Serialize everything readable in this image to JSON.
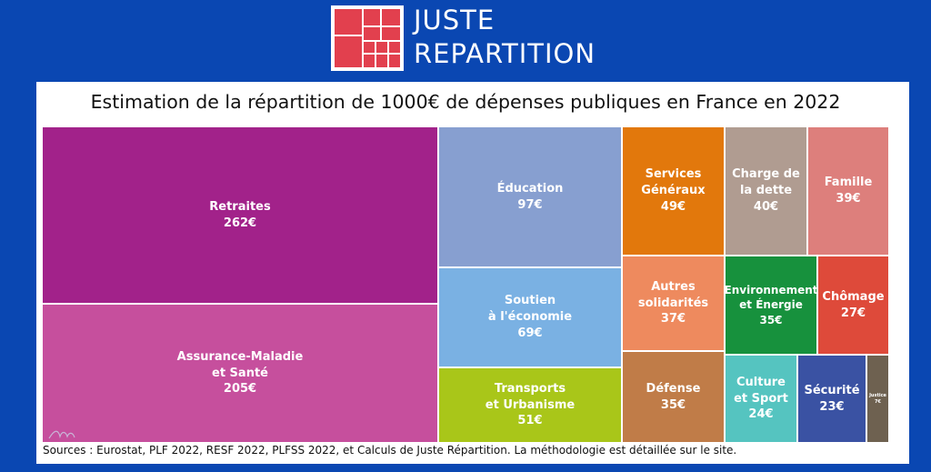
{
  "logo": {
    "line1": "JUSTE",
    "line2": "REPARTITION",
    "icon": "treemap-logo-icon"
  },
  "title": "Estimation de la répartition de 1000€ de dépenses publiques en France en 2022",
  "sources": "Sources : Eurostat, PLF 2022, RESF 2022, PLFSS 2022, et Calculs de Juste Répartition. La méthodologie est détaillée sur le site.",
  "chart_data": {
    "type": "treemap",
    "title": "Estimation de la répartition de 1000€ de dépenses publiques en France en 2022",
    "unit": "€",
    "items": [
      {
        "label": "Retraites",
        "value": 262,
        "value_label": "262€",
        "color": "#a2228a"
      },
      {
        "label": "Assurance-Maladie\net Santé",
        "value": 205,
        "value_label": "205€",
        "color": "#c64f9d"
      },
      {
        "label": "Éducation",
        "value": 97,
        "value_label": "97€",
        "color": "#879fd0"
      },
      {
        "label": "Soutien\nà l'économie",
        "value": 69,
        "value_label": "69€",
        "color": "#7ab1e3"
      },
      {
        "label": "Transports\net Urbanisme",
        "value": 51,
        "value_label": "51€",
        "color": "#a9c619"
      },
      {
        "label": "Services\nGénéraux",
        "value": 49,
        "value_label": "49€",
        "color": "#e2780c"
      },
      {
        "label": "Autres\nsolidarités",
        "value": 37,
        "value_label": "37€",
        "color": "#ee8a5e"
      },
      {
        "label": "Défense",
        "value": 35,
        "value_label": "35€",
        "color": "#c07c48"
      },
      {
        "label": "Charge de\nla dette",
        "value": 40,
        "value_label": "40€",
        "color": "#b09c91"
      },
      {
        "label": "Famille",
        "value": 39,
        "value_label": "39€",
        "color": "#dd7f7c"
      },
      {
        "label": "Environnement\net Énergie",
        "value": 35,
        "value_label": "35€",
        "color": "#17913d"
      },
      {
        "label": "Chômage",
        "value": 27,
        "value_label": "27€",
        "color": "#de4a3a"
      },
      {
        "label": "Culture\net Sport",
        "value": 24,
        "value_label": "24€",
        "color": "#55c4c0"
      },
      {
        "label": "Sécurité",
        "value": 23,
        "value_label": "23€",
        "color": "#3a52a3"
      },
      {
        "label": "Justice",
        "value": 7,
        "value_label": "7€",
        "color": "#6e6150"
      }
    ]
  }
}
